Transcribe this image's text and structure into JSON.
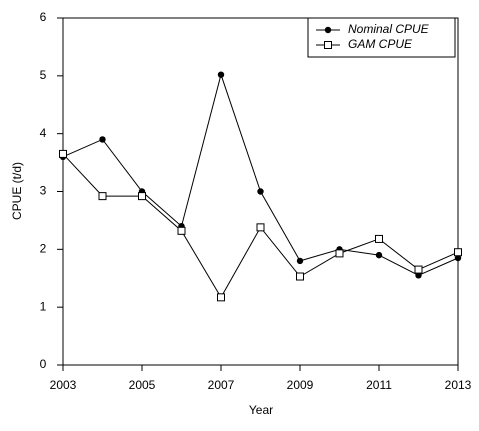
{
  "chart_data": {
    "type": "line",
    "x_label": "Year",
    "y_label": "CPUE (t/d)",
    "x": [
      2003,
      2004,
      2005,
      2006,
      2007,
      2008,
      2009,
      2010,
      2011,
      2012,
      2013
    ],
    "series": [
      {
        "name": "Nominal CPUE",
        "color": "#000000",
        "marker": "circle",
        "values": [
          3.6,
          3.9,
          3.0,
          2.4,
          5.02,
          3.0,
          1.8,
          2.0,
          1.9,
          1.55,
          1.85
        ]
      },
      {
        "name": "GAM CPUE",
        "color": "#000000",
        "marker": "square",
        "values": [
          3.65,
          2.92,
          2.92,
          2.32,
          1.17,
          2.38,
          1.53,
          1.93,
          2.18,
          1.65,
          1.95
        ]
      }
    ],
    "xlim": [
      2003,
      2013
    ],
    "xticks": [
      2003,
      2005,
      2007,
      2009,
      2011,
      2013
    ],
    "ylim": [
      0,
      6
    ],
    "yticks": [
      0,
      1,
      2,
      3,
      4,
      5,
      6
    ],
    "legend": "top-right",
    "grid": false
  }
}
